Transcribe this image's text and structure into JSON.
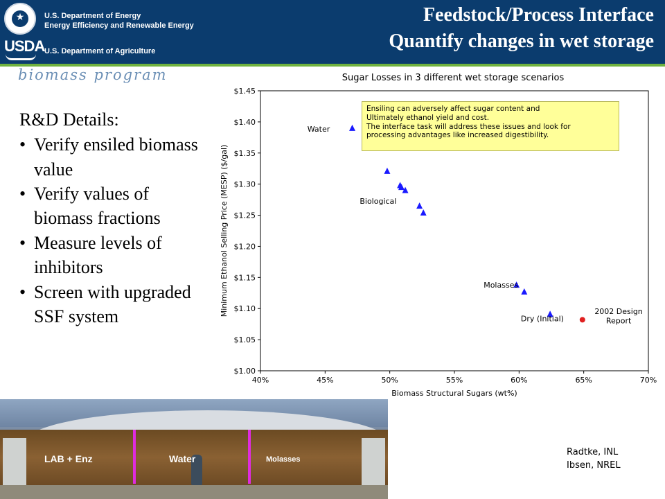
{
  "header": {
    "doe_line1": "U.S. Department of Energy",
    "doe_line2": "Energy Efficiency and Renewable Energy",
    "usda_logo": "USDA",
    "usda_line": "U.S. Department of Agriculture",
    "program_logo": "biomass program",
    "title_line1": "Feedstock/Process Interface",
    "title_line2": "Quantify changes in wet storage",
    "bar_color": "#0b3c6e",
    "rule_color": "#6fb23f"
  },
  "details": {
    "heading": "R&D Details:",
    "bullets": [
      "Verify ensiled biomass value",
      "Verify values of biomass fractions",
      "Measure levels of inhibitors",
      "Screen with upgraded SSF system"
    ]
  },
  "chart_data": {
    "type": "scatter",
    "title": "Sugar Losses in 3 different wet storage scenarios",
    "xlabel": "Biomass Structural Sugars (wt%)",
    "ylabel": "Minimum Ethanol Selling Price (MESP) ($/gal)",
    "xlim": [
      40,
      70
    ],
    "ylim": [
      1.0,
      1.45
    ],
    "x_ticks": [
      "40%",
      "45%",
      "50%",
      "55%",
      "60%",
      "65%",
      "70%"
    ],
    "y_ticks": [
      "$1.00",
      "$1.05",
      "$1.10",
      "$1.15",
      "$1.20",
      "$1.25",
      "$1.30",
      "$1.35",
      "$1.40",
      "$1.45"
    ],
    "grid": false,
    "series": [
      {
        "marker": "triangle",
        "color": "#1a1aff",
        "points": [
          {
            "x": 47.1,
            "y": 1.39
          },
          {
            "x": 49.8,
            "y": 1.321
          },
          {
            "x": 50.8,
            "y": 1.298
          },
          {
            "x": 50.9,
            "y": 1.295
          },
          {
            "x": 51.2,
            "y": 1.29
          },
          {
            "x": 52.3,
            "y": 1.265
          },
          {
            "x": 52.6,
            "y": 1.254
          },
          {
            "x": 59.8,
            "y": 1.138
          },
          {
            "x": 60.4,
            "y": 1.127
          },
          {
            "x": 62.4,
            "y": 1.091
          }
        ]
      },
      {
        "marker": "circle",
        "color": "#e02020",
        "points": [
          {
            "x": 64.9,
            "y": 1.082
          }
        ]
      }
    ],
    "annotations": [
      {
        "text": "Water",
        "x": 44.5,
        "y": 1.389
      },
      {
        "text": "Biological",
        "x": 49.1,
        "y": 1.273
      },
      {
        "text": "Molasses",
        "x": 58.6,
        "y": 1.138
      },
      {
        "text": "Dry (Initial)",
        "x": 61.8,
        "y": 1.084
      },
      {
        "text": "2002 Design",
        "x": 67.7,
        "y": 1.096
      },
      {
        "text": "Report",
        "x": 67.7,
        "y": 1.081
      }
    ],
    "note_lines": [
      "Ensiling can adversely affect sugar content and",
      "Ultimately ethanol yield and cost.",
      "The interface task will address these issues and look for",
      "processing advantages like increased digestibility."
    ]
  },
  "photo": {
    "labels": [
      "LAB + Enz",
      "Water",
      "Molasses"
    ]
  },
  "credits": {
    "line1": "Radtke, INL",
    "line2": "Ibsen, NREL"
  }
}
